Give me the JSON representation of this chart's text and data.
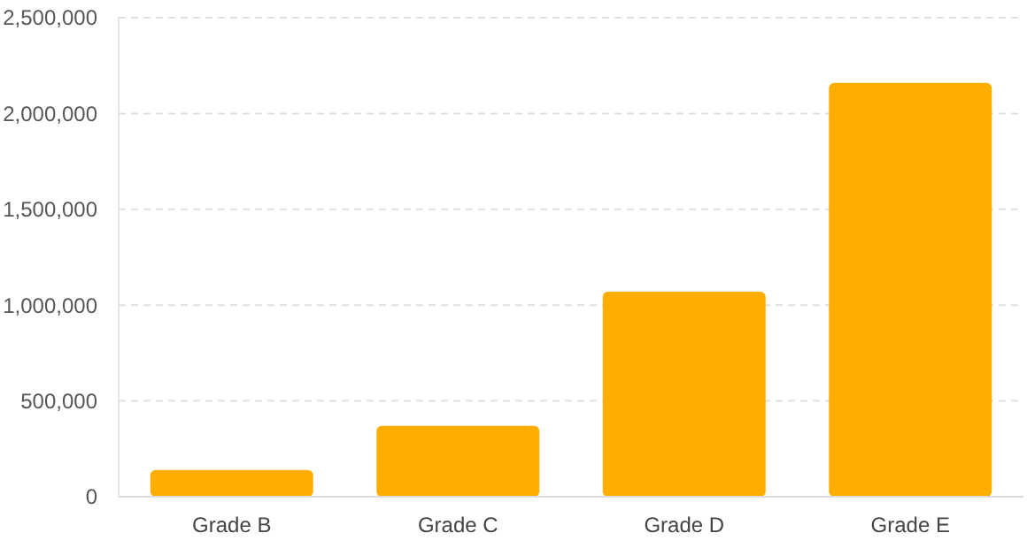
{
  "chart_data": {
    "type": "bar",
    "categories": [
      "Grade B",
      "Grade C",
      "Grade D",
      "Grade E"
    ],
    "values": [
      140000,
      370000,
      1070000,
      2160000
    ],
    "color": "#ffad00",
    "ylim": [
      0,
      2500000
    ],
    "yticks": [
      {
        "value": 0,
        "label": "0"
      },
      {
        "value": 500000,
        "label": "500,000"
      },
      {
        "value": 1000000,
        "label": "1,000,000"
      },
      {
        "value": 1500000,
        "label": "1,500,000"
      },
      {
        "value": 2000000,
        "label": "2,000,000"
      },
      {
        "value": 2500000,
        "label": "2,500,000"
      }
    ],
    "grid": "y"
  }
}
